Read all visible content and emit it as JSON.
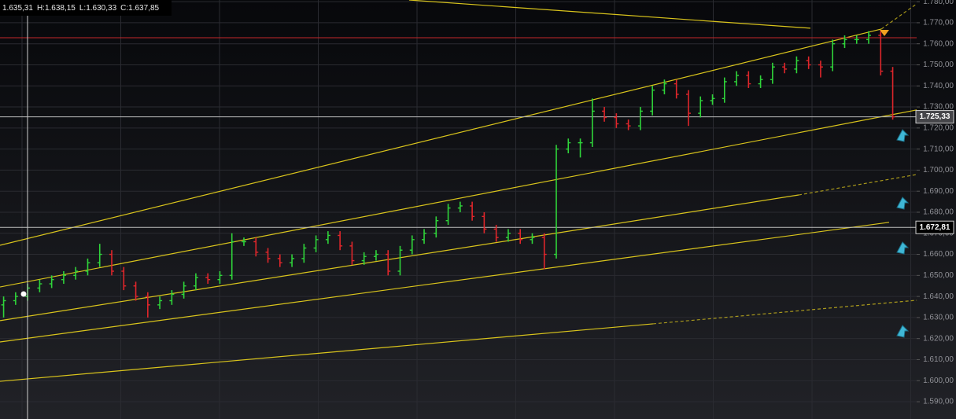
{
  "chart_data": {
    "type": "ohlc",
    "ohlc_readout": [
      "1.635,31",
      "H:1.638,15",
      "L:1.630,33",
      "C:1.637,85"
    ],
    "up_color": "#2fd43a",
    "down_color": "#e0262b",
    "trend_color": "#d9c41c",
    "grid": true,
    "ylim": [
      1581.8,
      1780.8
    ],
    "yticks": [
      {
        "value": 1590,
        "label": "1.590,00"
      },
      {
        "value": 1600,
        "label": "1.600,00"
      },
      {
        "value": 1610,
        "label": "1.610,00"
      },
      {
        "value": 1620,
        "label": "1.620,00"
      },
      {
        "value": 1630,
        "label": "1.630,00"
      },
      {
        "value": 1640,
        "label": "1.640,00"
      },
      {
        "value": 1650,
        "label": "1.650,00"
      },
      {
        "value": 1660,
        "label": "1.660,00"
      },
      {
        "value": 1670,
        "label": "1.670,00"
      },
      {
        "value": 1680,
        "label": "1.680,00"
      },
      {
        "value": 1690,
        "label": "1.690,00"
      },
      {
        "value": 1700,
        "label": "1.700,00"
      },
      {
        "value": 1710,
        "label": "1.710,00"
      },
      {
        "value": 1720,
        "label": "1.720,00"
      },
      {
        "value": 1730,
        "label": "1.730,00"
      },
      {
        "value": 1740,
        "label": "1.740,00"
      },
      {
        "value": 1750,
        "label": "1.750,00"
      },
      {
        "value": 1760,
        "label": "1.760,00"
      },
      {
        "value": 1770,
        "label": "1.770,00"
      },
      {
        "value": 1780,
        "label": "1.780,00"
      }
    ],
    "open": [
      1636,
      1638,
      1640,
      1644,
      1646,
      1648,
      1650,
      1652,
      1656,
      1660,
      1652,
      1645,
      1640,
      1636,
      1638,
      1641,
      1645,
      1649,
      1648,
      1650,
      1666,
      1666,
      1661,
      1658,
      1656,
      1658,
      1663,
      1667,
      1669,
      1664,
      1657,
      1659,
      1660,
      1652,
      1662,
      1667,
      1670,
      1676,
      1682,
      1683,
      1678,
      1672,
      1668,
      1670,
      1667,
      1668,
      1660,
      1710,
      1713,
      1713,
      1728,
      1725,
      1722,
      1721,
      1728,
      1738,
      1741,
      1736,
      1727,
      1733,
      1734,
      1742,
      1745,
      1741,
      1743,
      1749,
      1748,
      1752,
      1750,
      1749,
      1760,
      1762,
      1762,
      1764,
      1747
    ],
    "high": [
      1640,
      1642,
      1646,
      1648,
      1650,
      1652,
      1654,
      1658,
      1665,
      1662,
      1654,
      1647,
      1642,
      1640,
      1643,
      1647,
      1651,
      1651,
      1652,
      1670,
      1668,
      1668,
      1663,
      1660,
      1660,
      1665,
      1669,
      1671,
      1671,
      1666,
      1661,
      1662,
      1662,
      1664,
      1669,
      1672,
      1678,
      1684,
      1685,
      1685,
      1680,
      1674,
      1672,
      1672,
      1670,
      1670,
      1712,
      1715,
      1715,
      1734,
      1730,
      1727,
      1724,
      1730,
      1740,
      1743,
      1743,
      1738,
      1735,
      1736,
      1744,
      1747,
      1747,
      1745,
      1751,
      1751,
      1754,
      1754,
      1752,
      1762,
      1764,
      1764,
      1766,
      1766,
      1749
    ],
    "low": [
      1630,
      1636,
      1638,
      1642,
      1644,
      1646,
      1648,
      1650,
      1654,
      1650,
      1643,
      1638,
      1630,
      1634,
      1636,
      1639,
      1643,
      1646,
      1646,
      1648,
      1664,
      1659,
      1656,
      1654,
      1654,
      1656,
      1661,
      1665,
      1662,
      1655,
      1655,
      1657,
      1650,
      1650,
      1660,
      1665,
      1668,
      1674,
      1680,
      1676,
      1670,
      1666,
      1666,
      1665,
      1665,
      1653,
      1658,
      1708,
      1706,
      1711,
      1723,
      1720,
      1719,
      1719,
      1726,
      1736,
      1734,
      1721,
      1725,
      1731,
      1732,
      1740,
      1739,
      1739,
      1741,
      1746,
      1746,
      1748,
      1744,
      1747,
      1758,
      1760,
      1760,
      1745,
      1724
    ],
    "close": [
      1638,
      1640,
      1644,
      1646,
      1648,
      1650,
      1652,
      1656,
      1660,
      1652,
      1645,
      1640,
      1636,
      1638,
      1641,
      1645,
      1649,
      1648,
      1650,
      1666,
      1666,
      1661,
      1658,
      1656,
      1658,
      1663,
      1667,
      1669,
      1664,
      1657,
      1659,
      1660,
      1652,
      1662,
      1667,
      1670,
      1676,
      1682,
      1683,
      1678,
      1672,
      1668,
      1670,
      1667,
      1668,
      1660,
      1710,
      1713,
      1713,
      1728,
      1725,
      1722,
      1721,
      1728,
      1738,
      1741,
      1736,
      1727,
      1733,
      1734,
      1742,
      1745,
      1741,
      1743,
      1749,
      1748,
      1752,
      1750,
      1749,
      1760,
      1762,
      1762,
      1764,
      1747,
      1725.33
    ],
    "trendlines": [
      {
        "x": [
          33.75,
          67.15
        ],
        "y": [
          1780.8,
          1767.4
        ]
      },
      {
        "x": [
          -0.3,
          73.05
        ],
        "y": [
          1664.3,
          1767.0
        ]
      },
      {
        "x": [
          73.05,
          76.0
        ],
        "y": [
          1767.0,
          1779.0
        ],
        "dashed": true
      },
      {
        "x": [
          -0.3,
          76.0
        ],
        "y": [
          1644.5,
          1728.6
        ]
      },
      {
        "x": [
          -0.3,
          66.17
        ],
        "y": [
          1628.5,
          1688.2
        ]
      },
      {
        "x": [
          66.17,
          76.0
        ],
        "y": [
          1688.2,
          1697.9
        ],
        "dashed": true
      },
      {
        "x": [
          -0.3,
          73.7
        ],
        "y": [
          1618.4,
          1675.2
        ]
      },
      {
        "x": [
          -0.3,
          54.05
        ],
        "y": [
          1599.7,
          1627.0
        ]
      },
      {
        "x": [
          54.05,
          76.0
        ],
        "y": [
          1627.0,
          1638.2
        ],
        "dashed": true
      }
    ],
    "hlines": [
      {
        "value": 1762.9,
        "color": "#c4282b"
      },
      {
        "value": 1725.33,
        "color": "#bdbdbd",
        "label": "1.725,33"
      },
      {
        "value": 1672.81,
        "color": "#bdbdbd",
        "label": "1.672,81"
      }
    ]
  }
}
